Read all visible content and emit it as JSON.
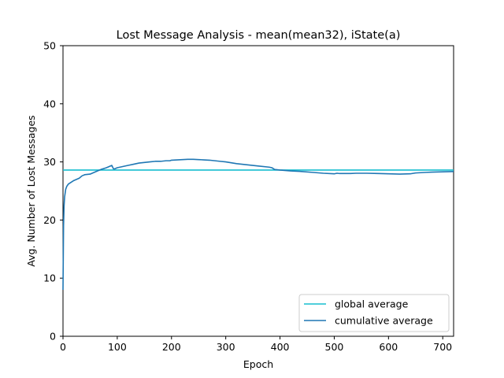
{
  "chart_data": {
    "type": "line",
    "title": "Lost Message Analysis - mean(mean32), iState(a)",
    "xlabel": "Epoch",
    "ylabel": "Avg. Number of Lost Messages",
    "xlim": [
      0,
      720
    ],
    "ylim": [
      0,
      50
    ],
    "xticks": [
      0,
      100,
      200,
      300,
      400,
      500,
      600,
      700
    ],
    "yticks": [
      0,
      10,
      20,
      30,
      40,
      50
    ],
    "grid": false,
    "legend_position": "bottom-right",
    "series": [
      {
        "name": "global average",
        "color": "#17becf",
        "x": [
          0,
          720
        ],
        "y": [
          28.6,
          28.6
        ]
      },
      {
        "name": "cumulative average",
        "color": "#1f77b4",
        "x": [
          0,
          1,
          2,
          3,
          5,
          7,
          10,
          15,
          20,
          25,
          30,
          35,
          40,
          50,
          60,
          70,
          80,
          85,
          90,
          93,
          95,
          100,
          110,
          120,
          130,
          140,
          150,
          160,
          170,
          180,
          190,
          197,
          200,
          210,
          220,
          230,
          240,
          250,
          260,
          270,
          280,
          290,
          300,
          320,
          340,
          360,
          380,
          385,
          390,
          400,
          420,
          440,
          460,
          480,
          500,
          505,
          510,
          530,
          540,
          560,
          580,
          600,
          620,
          640,
          650,
          660,
          670,
          680,
          700,
          720
        ],
        "y": [
          8.0,
          19.0,
          22.5,
          24.0,
          25.3,
          25.8,
          26.2,
          26.5,
          26.8,
          27.0,
          27.2,
          27.6,
          27.8,
          27.9,
          28.3,
          28.7,
          29.0,
          29.2,
          29.4,
          28.8,
          28.8,
          29.0,
          29.2,
          29.4,
          29.6,
          29.8,
          29.9,
          30.0,
          30.1,
          30.1,
          30.2,
          30.2,
          30.3,
          30.35,
          30.4,
          30.45,
          30.45,
          30.4,
          30.35,
          30.3,
          30.2,
          30.1,
          30.0,
          29.7,
          29.5,
          29.3,
          29.1,
          29.0,
          28.7,
          28.6,
          28.45,
          28.35,
          28.2,
          28.05,
          27.95,
          28.05,
          28.0,
          28.0,
          28.05,
          28.05,
          28.0,
          27.95,
          27.9,
          27.95,
          28.1,
          28.15,
          28.2,
          28.25,
          28.3,
          28.35
        ]
      }
    ]
  }
}
